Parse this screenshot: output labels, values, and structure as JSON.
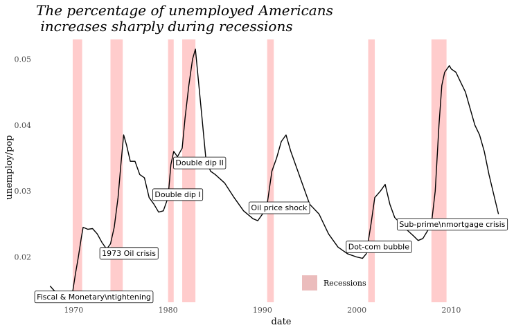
{
  "chart_data": {
    "type": "line",
    "title_lines": [
      "The percentage of unemployed Americans",
      " increases sharply during recessions"
    ],
    "xlabel": "date",
    "ylabel": "unemploy/pop",
    "xlim": [
      1965.5,
      2016.5
    ],
    "ylim": [
      0.0123,
      0.0535
    ],
    "x_ticks": [
      1970,
      1980,
      1990,
      2000,
      2010
    ],
    "x_tick_labels": [
      "1970",
      "1980",
      "1990",
      "2000",
      "2010"
    ],
    "y_ticks": [
      0.02,
      0.03,
      0.04,
      0.05
    ],
    "y_tick_labels": [
      "0.02",
      "0.03",
      "0.04",
      "0.05"
    ],
    "grid": false,
    "line_color": "#000000",
    "recession_color": "#ffcccc",
    "legend": {
      "label": "Recessions",
      "placement": "bottom-center",
      "swatch_color": "#ebbcbc"
    },
    "recessions": [
      {
        "start": 1969.9,
        "end": 1970.9
      },
      {
        "start": 1973.9,
        "end": 1975.2
      },
      {
        "start": 1980.0,
        "end": 1980.6
      },
      {
        "start": 1981.5,
        "end": 1982.9
      },
      {
        "start": 1990.5,
        "end": 1991.2
      },
      {
        "start": 2001.2,
        "end": 2001.9
      },
      {
        "start": 2007.9,
        "end": 2009.5
      }
    ],
    "series": [
      {
        "x": [
          1967.5,
          1968.0,
          1968.5,
          1969.0,
          1969.5,
          1969.9,
          1970.2,
          1970.5,
          1970.8,
          1971.0,
          1971.5,
          1972.0,
          1972.5,
          1973.0,
          1973.5,
          1973.9,
          1974.3,
          1974.7,
          1975.0,
          1975.3,
          1975.6,
          1976.0,
          1976.5,
          1977.0,
          1977.5,
          1978.0,
          1978.5,
          1979.0,
          1979.5,
          1980.0,
          1980.3,
          1980.6,
          1981.0,
          1981.5,
          1981.8,
          1982.2,
          1982.6,
          1982.9,
          1983.2,
          1983.6,
          1984.0,
          1984.5,
          1985.0,
          1986.0,
          1987.0,
          1988.0,
          1989.0,
          1989.5,
          1990.0,
          1990.5,
          1991.0,
          1991.5,
          1992.0,
          1992.5,
          1993.0,
          1994.0,
          1995.0,
          1996.0,
          1997.0,
          1998.0,
          1999.0,
          2000.0,
          2000.6,
          2001.0,
          2001.5,
          2001.9,
          2002.5,
          2003.0,
          2003.5,
          2004.0,
          2005.0,
          2006.0,
          2006.5,
          2007.0,
          2007.5,
          2007.9,
          2008.3,
          2008.7,
          2009.0,
          2009.3,
          2009.8,
          2010.0,
          2010.5,
          2011.0,
          2011.5,
          2012.0,
          2012.5,
          2013.0,
          2013.5,
          2014.0,
          2014.5,
          2015.0
        ],
        "y": [
          0.0156,
          0.0148,
          0.0143,
          0.014,
          0.0142,
          0.0148,
          0.0175,
          0.02,
          0.0228,
          0.0245,
          0.0242,
          0.0243,
          0.0235,
          0.0222,
          0.0212,
          0.022,
          0.0245,
          0.029,
          0.034,
          0.0385,
          0.037,
          0.0345,
          0.0345,
          0.0325,
          0.032,
          0.029,
          0.028,
          0.0268,
          0.027,
          0.029,
          0.034,
          0.036,
          0.0352,
          0.0365,
          0.041,
          0.046,
          0.05,
          0.0515,
          0.047,
          0.041,
          0.035,
          0.033,
          0.0325,
          0.0312,
          0.029,
          0.027,
          0.0258,
          0.0255,
          0.0265,
          0.028,
          0.033,
          0.035,
          0.0375,
          0.0385,
          0.036,
          0.032,
          0.028,
          0.0265,
          0.0235,
          0.0215,
          0.0205,
          0.02,
          0.0198,
          0.0205,
          0.025,
          0.029,
          0.03,
          0.031,
          0.028,
          0.026,
          0.0245,
          0.0232,
          0.0225,
          0.0228,
          0.024,
          0.025,
          0.03,
          0.04,
          0.046,
          0.048,
          0.049,
          0.0485,
          0.048,
          0.0465,
          0.045,
          0.0425,
          0.04,
          0.0385,
          0.036,
          0.0325,
          0.0295,
          0.0265
        ]
      }
    ],
    "annotations": [
      {
        "label": "Fiscal & Monetary\\ntightening",
        "x": 1965.8,
        "y": 0.014
      },
      {
        "label": "1973 Oil crisis",
        "x": 1972.7,
        "y": 0.0206
      },
      {
        "label": "Double dip I",
        "x": 1978.3,
        "y": 0.0295
      },
      {
        "label": "Double dip II",
        "x": 1980.5,
        "y": 0.0343
      },
      {
        "label": "Oil price shock",
        "x": 1988.5,
        "y": 0.0275
      },
      {
        "label": "Dot-com bubble",
        "x": 1998.8,
        "y": 0.0216
      },
      {
        "label": "Sub-prime\\nmortgage crisis",
        "x": 2004.2,
        "y": 0.025
      }
    ]
  }
}
